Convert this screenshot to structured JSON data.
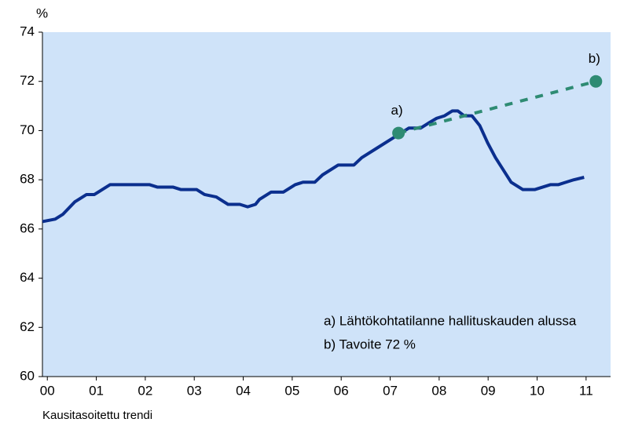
{
  "chart_data": {
    "type": "line",
    "y_unit": "%",
    "x_note": "Kausitasoitettu trendi",
    "xlim": [
      -0.1,
      11.5
    ],
    "xticks": [
      {
        "value": 0,
        "label": "00"
      },
      {
        "value": 1,
        "label": "01"
      },
      {
        "value": 2,
        "label": "02"
      },
      {
        "value": 3,
        "label": "03"
      },
      {
        "value": 4,
        "label": "04"
      },
      {
        "value": 5,
        "label": "05"
      },
      {
        "value": 6,
        "label": "06"
      },
      {
        "value": 7,
        "label": "07"
      },
      {
        "value": 8,
        "label": "08"
      },
      {
        "value": 9,
        "label": "09"
      },
      {
        "value": 10,
        "label": "10"
      },
      {
        "value": 11,
        "label": "11"
      }
    ],
    "ylim": [
      60,
      74
    ],
    "yticks": [
      60,
      62,
      64,
      66,
      68,
      70,
      72,
      74
    ],
    "grid": false,
    "background": "#cfe3f9",
    "series": [
      {
        "color": "#0b2f8e",
        "x": [
          -0.1,
          0.16,
          0.32,
          0.56,
          0.8,
          0.96,
          1.12,
          1.28,
          2.09,
          2.25,
          2.57,
          2.73,
          3.05,
          3.21,
          3.45,
          3.69,
          3.93,
          4.09,
          4.25,
          4.33,
          4.57,
          4.82,
          5.06,
          5.22,
          5.46,
          5.62,
          5.94,
          6.26,
          6.42,
          6.74,
          7.06,
          7.22,
          7.38,
          7.62,
          7.78,
          7.95,
          8.11,
          8.27,
          8.38,
          8.51,
          8.67,
          8.83,
          8.99,
          9.15,
          9.47,
          9.71,
          9.95,
          10.11,
          10.27,
          10.43,
          10.59,
          10.75,
          10.96
        ],
        "values": [
          66.3,
          66.4,
          66.6,
          67.1,
          67.4,
          67.4,
          67.6,
          67.8,
          67.8,
          67.7,
          67.7,
          67.6,
          67.6,
          67.4,
          67.3,
          67.0,
          67.0,
          66.9,
          67.0,
          67.2,
          67.5,
          67.5,
          67.8,
          67.9,
          67.9,
          68.2,
          68.6,
          68.6,
          68.9,
          69.3,
          69.7,
          69.9,
          70.1,
          70.1,
          70.3,
          70.5,
          70.6,
          70.8,
          70.8,
          70.6,
          70.6,
          70.2,
          69.5,
          68.9,
          67.9,
          67.6,
          67.6,
          67.7,
          67.8,
          67.8,
          67.9,
          68.0,
          68.1
        ]
      },
      {
        "color": "#2e8b73",
        "dashed": true,
        "x": [
          7.17,
          11.2
        ],
        "values": [
          69.9,
          72.0
        ],
        "point_labels": [
          "a)",
          "b)"
        ]
      }
    ],
    "annotations": [
      "a) Lähtökohtatilanne hallituskauden alussa",
      "b) Tavoite 72 %"
    ]
  }
}
